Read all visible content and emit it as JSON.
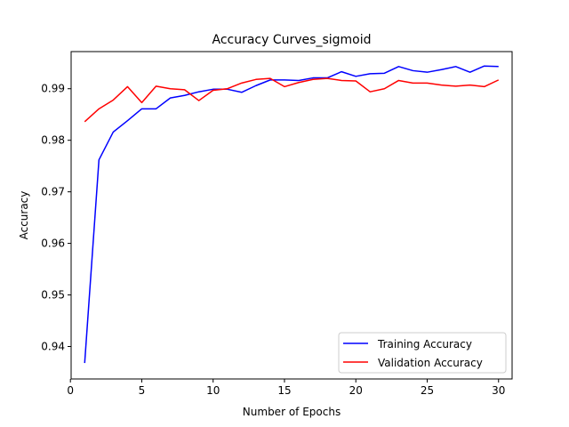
{
  "chart_data": {
    "type": "line",
    "title": "Accuracy Curves_sigmoid",
    "xlabel": "Number of Epochs",
    "ylabel": "Accuracy",
    "xlim": [
      0.05,
      30.95
    ],
    "ylim": [
      0.9337,
      0.9972
    ],
    "xticks": [
      0,
      5,
      10,
      15,
      20,
      25,
      30
    ],
    "yticks": [
      0.94,
      0.95,
      0.96,
      0.97,
      0.98,
      0.99
    ],
    "ytick_labels": [
      "0.94",
      "0.95",
      "0.96",
      "0.97",
      "0.98",
      "0.99"
    ],
    "grid": false,
    "legend_position": "lower right",
    "x": [
      1,
      2,
      3,
      4,
      5,
      6,
      7,
      8,
      9,
      10,
      11,
      12,
      13,
      14,
      15,
      16,
      17,
      18,
      19,
      20,
      21,
      22,
      23,
      24,
      25,
      26,
      27,
      28,
      29,
      30
    ],
    "series": [
      {
        "name": "Training Accuracy",
        "color": "#0000ff",
        "values": [
          0.9368,
          0.9762,
          0.9816,
          0.9838,
          0.9861,
          0.9861,
          0.9882,
          0.9887,
          0.9894,
          0.9899,
          0.9899,
          0.9893,
          0.9906,
          0.9917,
          0.9917,
          0.9916,
          0.9921,
          0.9921,
          0.9933,
          0.9924,
          0.9929,
          0.993,
          0.9943,
          0.9935,
          0.9932,
          0.9937,
          0.9943,
          0.9932,
          0.9944,
          0.9943
        ]
      },
      {
        "name": "Validation Accuracy",
        "color": "#ff0000",
        "values": [
          0.9836,
          0.9861,
          0.9878,
          0.9904,
          0.9873,
          0.9905,
          0.99,
          0.9898,
          0.9877,
          0.9897,
          0.99,
          0.9911,
          0.9918,
          0.992,
          0.9904,
          0.9912,
          0.9918,
          0.992,
          0.9916,
          0.9915,
          0.9894,
          0.99,
          0.9916,
          0.9911,
          0.9911,
          0.9907,
          0.9905,
          0.9907,
          0.9904,
          0.9917
        ]
      }
    ]
  }
}
